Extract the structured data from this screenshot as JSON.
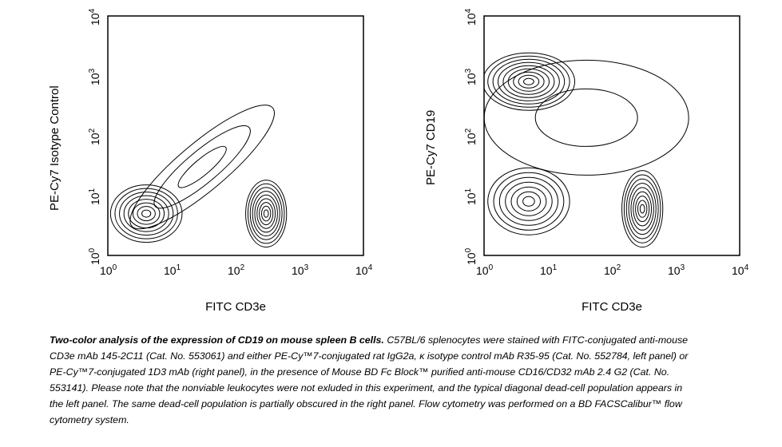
{
  "chart_data": [
    {
      "type": "contour",
      "panel": "left",
      "xlabel": "FITC CD3e",
      "ylabel": "PE-Cy7 Isotype Control",
      "xscale": "log",
      "yscale": "log",
      "xlim": [
        1,
        10000
      ],
      "ylim": [
        1,
        10000
      ],
      "xticks": [
        {
          "base": "10",
          "exp": "0"
        },
        {
          "base": "10",
          "exp": "1"
        },
        {
          "base": "10",
          "exp": "2"
        },
        {
          "base": "10",
          "exp": "3"
        },
        {
          "base": "10",
          "exp": "4"
        }
      ],
      "yticks": [
        {
          "base": "10",
          "exp": "0"
        },
        {
          "base": "10",
          "exp": "1"
        },
        {
          "base": "10",
          "exp": "2"
        },
        {
          "base": "10",
          "exp": "3"
        },
        {
          "base": "10",
          "exp": "4"
        }
      ],
      "populations": [
        {
          "x": 4,
          "y": 5,
          "sx": 0.35,
          "sy": 0.3,
          "levels": 8
        },
        {
          "x": 300,
          "y": 5,
          "sx": 0.2,
          "sy": 0.35,
          "levels": 9
        },
        {
          "x": 30,
          "y": 30,
          "sx": 0.9,
          "sy": 0.25,
          "angle": -40,
          "levels": 3
        }
      ]
    },
    {
      "type": "contour",
      "panel": "right",
      "xlabel": "FITC CD3e",
      "ylabel": "PE-Cy7 CD19",
      "xscale": "log",
      "yscale": "log",
      "xlim": [
        1,
        10000
      ],
      "ylim": [
        1,
        10000
      ],
      "xticks": [
        {
          "base": "10",
          "exp": "0"
        },
        {
          "base": "10",
          "exp": "1"
        },
        {
          "base": "10",
          "exp": "2"
        },
        {
          "base": "10",
          "exp": "3"
        },
        {
          "base": "10",
          "exp": "4"
        }
      ],
      "yticks": [
        {
          "base": "10",
          "exp": "0"
        },
        {
          "base": "10",
          "exp": "1"
        },
        {
          "base": "10",
          "exp": "2"
        },
        {
          "base": "10",
          "exp": "3"
        },
        {
          "base": "10",
          "exp": "4"
        }
      ],
      "populations": [
        {
          "x": 5,
          "y": 800,
          "sx": 0.45,
          "sy": 0.3,
          "levels": 9
        },
        {
          "x": 5,
          "y": 8,
          "sx": 0.4,
          "sy": 0.35,
          "levels": 7
        },
        {
          "x": 300,
          "y": 6,
          "sx": 0.2,
          "sy": 0.4,
          "levels": 9
        },
        {
          "x": 40,
          "y": 200,
          "sx": 1.0,
          "sy": 0.6,
          "levels": 2
        }
      ]
    }
  ],
  "caption": {
    "bold": "Two-color analysis of the expression of CD19 on mouse spleen B cells.",
    "text": " C57BL/6 splenocytes were stained with FITC-conjugated anti-mouse CD3e mAb 145-2C11 (Cat. No. 553061) and either PE-Cy™7-conjugated rat IgG2a, κ isotype control mAb R35-95 (Cat. No. 552784, left panel) or PE-Cy™7-conjugated 1D3 mAb (right panel), in the presence of Mouse BD Fc Block™ purified anti-mouse CD16/CD32 mAb 2.4 G2 (Cat. No. 553141). Please note that the nonviable leukocytes were not exluded in this experiment, and the typical diagonal dead-cell population appears in the left panel. The same dead-cell population is partially obscured in the right panel. Flow cytometry was performed on a BD FACSCalibur™ flow cytometry system."
  }
}
